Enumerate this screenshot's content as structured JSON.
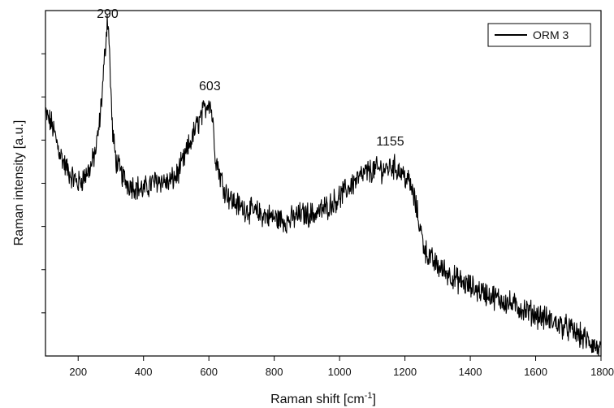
{
  "chart_data": {
    "type": "line",
    "title": "",
    "xlabel": "Raman shift [cm",
    "xlabel_superscript": "-1",
    "xlabel_suffix": "]",
    "ylabel": "Raman intensity [a.u.]",
    "xlim": [
      100,
      1800
    ],
    "ylim": [
      0,
      1
    ],
    "x_ticks": [
      200,
      400,
      600,
      800,
      1000,
      1200,
      1400,
      1600,
      1800
    ],
    "x_tick_labels": [
      "200",
      "400",
      "600",
      "800",
      "1000",
      "1200",
      "1400",
      "1600",
      "1800"
    ],
    "y_ticks": [
      0.125,
      0.25,
      0.375,
      0.5,
      0.625,
      0.75,
      0.875
    ],
    "y_tick_labels_shown": false,
    "grid": false,
    "legend": {
      "position": "top-right",
      "entries": [
        "ORM 3"
      ]
    },
    "annotations": [
      {
        "text": "290",
        "x": 290,
        "y": 0.97
      },
      {
        "text": "603",
        "x": 603,
        "y": 0.76
      },
      {
        "text": "1155",
        "x": 1155,
        "y": 0.6
      }
    ],
    "series": [
      {
        "name": "ORM 3",
        "color": "#000000",
        "x": [
          100,
          120,
          140,
          160,
          180,
          200,
          220,
          240,
          255,
          265,
          275,
          282,
          287,
          290,
          293,
          298,
          305,
          315,
          330,
          350,
          375,
          400,
          425,
          450,
          475,
          500,
          520,
          540,
          560,
          575,
          590,
          600,
          605,
          612,
          620,
          635,
          650,
          670,
          700,
          730,
          760,
          800,
          840,
          880,
          920,
          960,
          1000,
          1040,
          1080,
          1110,
          1140,
          1160,
          1180,
          1200,
          1215,
          1230,
          1245,
          1255,
          1265,
          1280,
          1300,
          1330,
          1360,
          1400,
          1450,
          1500,
          1550,
          1600,
          1650,
          1700,
          1750,
          1780,
          1800
        ],
        "y": [
          0.7,
          0.67,
          0.6,
          0.55,
          0.52,
          0.5,
          0.52,
          0.55,
          0.6,
          0.67,
          0.78,
          0.88,
          0.95,
          0.98,
          0.95,
          0.82,
          0.65,
          0.57,
          0.53,
          0.5,
          0.49,
          0.48,
          0.5,
          0.51,
          0.5,
          0.52,
          0.56,
          0.61,
          0.66,
          0.69,
          0.72,
          0.74,
          0.73,
          0.68,
          0.58,
          0.52,
          0.48,
          0.45,
          0.43,
          0.42,
          0.41,
          0.4,
          0.39,
          0.41,
          0.41,
          0.43,
          0.46,
          0.5,
          0.53,
          0.54,
          0.54,
          0.55,
          0.54,
          0.52,
          0.5,
          0.45,
          0.38,
          0.33,
          0.3,
          0.28,
          0.26,
          0.24,
          0.22,
          0.2,
          0.18,
          0.16,
          0.14,
          0.12,
          0.1,
          0.08,
          0.05,
          0.03,
          0.01
        ]
      }
    ]
  }
}
